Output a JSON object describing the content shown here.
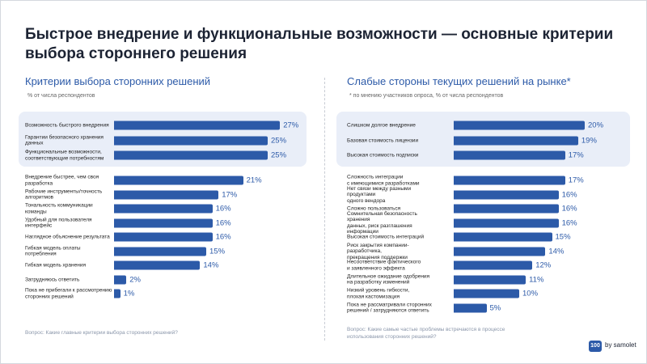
{
  "title": "Быстрое внедрение и функциональные возможности — основные критерии\nвыбора стороннего решения",
  "logo": {
    "badge": "100",
    "text": "by samolet"
  },
  "chart_data": [
    {
      "type": "bar",
      "orientation": "horizontal",
      "title": "Критерии выбора сторонних решений",
      "subtitle": "% от числа респондентов",
      "question": "Вопрос: Какие главные критерии выбора сторонних решений?",
      "color": "#2c5aa8",
      "categories": [
        "Возможность быстрого внедрения",
        "Гарантии безопасного хранения\nданных",
        "Функциональные возможности,\nсоответствующие потребностям",
        "Внедрение быстрее, чем своя\nразработка",
        "Рабочие инструменты/точность\nалгоритмов",
        "Тональность коммуникации\nкоманды",
        "Удобный для пользователя\nинтерфейс",
        "Наглядное объяснение результата",
        "Гибкая модель оплаты\nпотребления",
        "Гибкая модель хранения",
        "Затрудняюсь ответить",
        "Пока не прибегали к рассмотрению\nсторонних решений"
      ],
      "values": [
        27,
        25,
        25,
        21,
        17,
        16,
        16,
        16,
        15,
        14,
        2,
        1
      ],
      "value_labels": [
        "27%",
        "25%",
        "25%",
        "21%",
        "17%",
        "16%",
        "16%",
        "16%",
        "15%",
        "14%",
        "2%",
        "1%"
      ]
    },
    {
      "type": "bar",
      "orientation": "horizontal",
      "title": "Слабые стороны текущих решений на рынке*",
      "subtitle": "* по мнению участников опроса, % от числа респондентов",
      "question": "Вопрос: Какие самые частые проблемы встречаются в процессе\nиспользования сторонних решений?",
      "color": "#2c5aa8",
      "categories": [
        "Слишком долгое внедрение",
        "Базовая стоимость лицензии",
        "Высокая стоимость подписки",
        "Сложность интеграции\nс имеющимися разработками",
        "Нет связи между разными продуктами\nодного вендора",
        "Сложно пользоваться",
        "Сомнительная безопасность хранения\nданных, риск разглашения информации",
        "Высокая стоимость интеграций",
        "Риск закрытия компании-разработчика,\nпрекращения поддержки",
        "Несоответствие фактического\nи заявленного эффекта",
        "Длительное ожидание одобрения\nна разработку изменений",
        "Низкий уровень гибкости,\nплохая кастомизация",
        "Пока не рассматривали сторонних\nрешений / затрудняются ответить"
      ],
      "values": [
        20,
        19,
        17,
        17,
        16,
        16,
        16,
        15,
        14,
        12,
        11,
        10,
        5
      ],
      "value_labels": [
        "20%",
        "19%",
        "17%",
        "17%",
        "16%",
        "16%",
        "16%",
        "15%",
        "14%",
        "12%",
        "11%",
        "10%",
        "5%"
      ]
    }
  ]
}
